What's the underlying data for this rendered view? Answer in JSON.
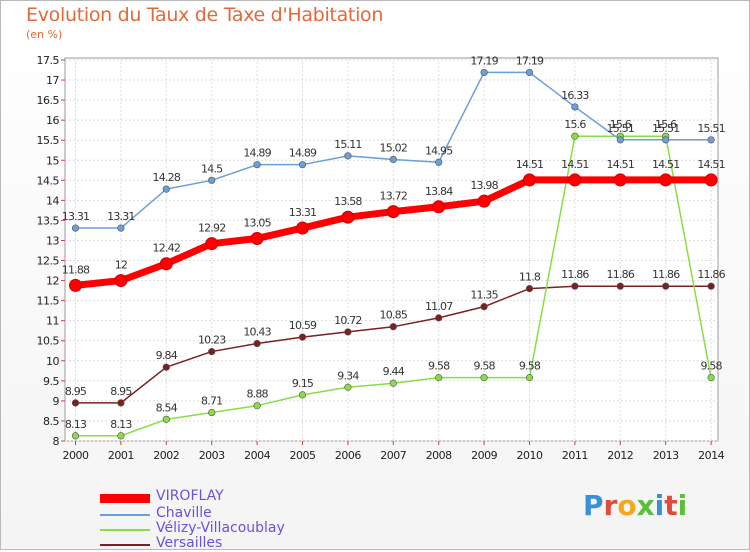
{
  "title": "Evolution du Taux de Taxe d'Habitation",
  "unit_label": "(en %)",
  "logo": "Proxiti",
  "chart_data": {
    "type": "line",
    "title": "Evolution du Taux de Taxe d'Habitation",
    "ylabel": "(en %)",
    "x": [
      "2000",
      "2001",
      "2002",
      "2003",
      "2004",
      "2005",
      "2006",
      "2007",
      "2008",
      "2009",
      "2010",
      "2011",
      "2012",
      "2013",
      "2014"
    ],
    "ylim": [
      8,
      17.5
    ],
    "yticks": [
      "8",
      "8.5",
      "9",
      "9.5",
      "10",
      "10.5",
      "11",
      "11.5",
      "12",
      "12.5",
      "13",
      "13.5",
      "14",
      "14.5",
      "15",
      "15.5",
      "16",
      "16.5",
      "17",
      "17.5"
    ],
    "grid": true,
    "legend_position": "bottom-left",
    "series": [
      {
        "name": "VIROFLAY",
        "color": "#ff0000",
        "values": [
          11.88,
          12,
          12.42,
          12.92,
          13.05,
          13.31,
          13.58,
          13.72,
          13.84,
          13.98,
          14.51,
          14.51,
          14.51,
          14.51,
          14.51
        ],
        "labels": [
          "11.88",
          "12",
          "12.42",
          "12.92",
          "13.05",
          "13.31",
          "13.58",
          "13.72",
          "13.84",
          "13.98",
          "14.51",
          "14.51",
          "14.51",
          "14.51",
          "14.51"
        ]
      },
      {
        "name": "Chaville",
        "color": "#6a9fd8",
        "values": [
          13.31,
          13.31,
          14.28,
          14.5,
          14.89,
          14.89,
          15.11,
          15.02,
          14.95,
          17.19,
          17.19,
          16.33,
          15.51,
          15.51,
          15.51
        ],
        "labels": [
          "13.31",
          "13.31",
          "14.28",
          "14.5",
          "14.89",
          "14.89",
          "15.11",
          "15.02",
          "14.95",
          "17.19",
          "17.19",
          "16.33",
          "15.51",
          "15.51",
          "15.51"
        ]
      },
      {
        "name": "Vélizy-Villacoublay",
        "color": "#88dd44",
        "values": [
          8.13,
          8.13,
          8.54,
          8.71,
          8.88,
          9.15,
          9.34,
          9.44,
          9.58,
          9.58,
          9.58,
          15.6,
          15.6,
          15.6,
          9.58
        ],
        "labels": [
          "8.13",
          "8.13",
          "8.54",
          "8.71",
          "8.88",
          "9.15",
          "9.34",
          "9.44",
          "9.58",
          "9.58",
          "9.58",
          "15.6",
          "15.6",
          "15.6",
          "9.58"
        ]
      },
      {
        "name": "Versailles",
        "color": "#7a2020",
        "values": [
          8.95,
          8.95,
          9.84,
          10.23,
          10.43,
          10.59,
          10.72,
          10.85,
          11.07,
          11.35,
          11.8,
          11.86,
          11.86,
          11.86,
          11.86
        ],
        "labels": [
          "8.95",
          "8.95",
          "9.84",
          "10.23",
          "10.43",
          "10.59",
          "10.72",
          "10.85",
          "11.07",
          "11.35",
          "11.8",
          "11.86",
          "11.86",
          "11.86",
          "11.86"
        ]
      }
    ]
  }
}
